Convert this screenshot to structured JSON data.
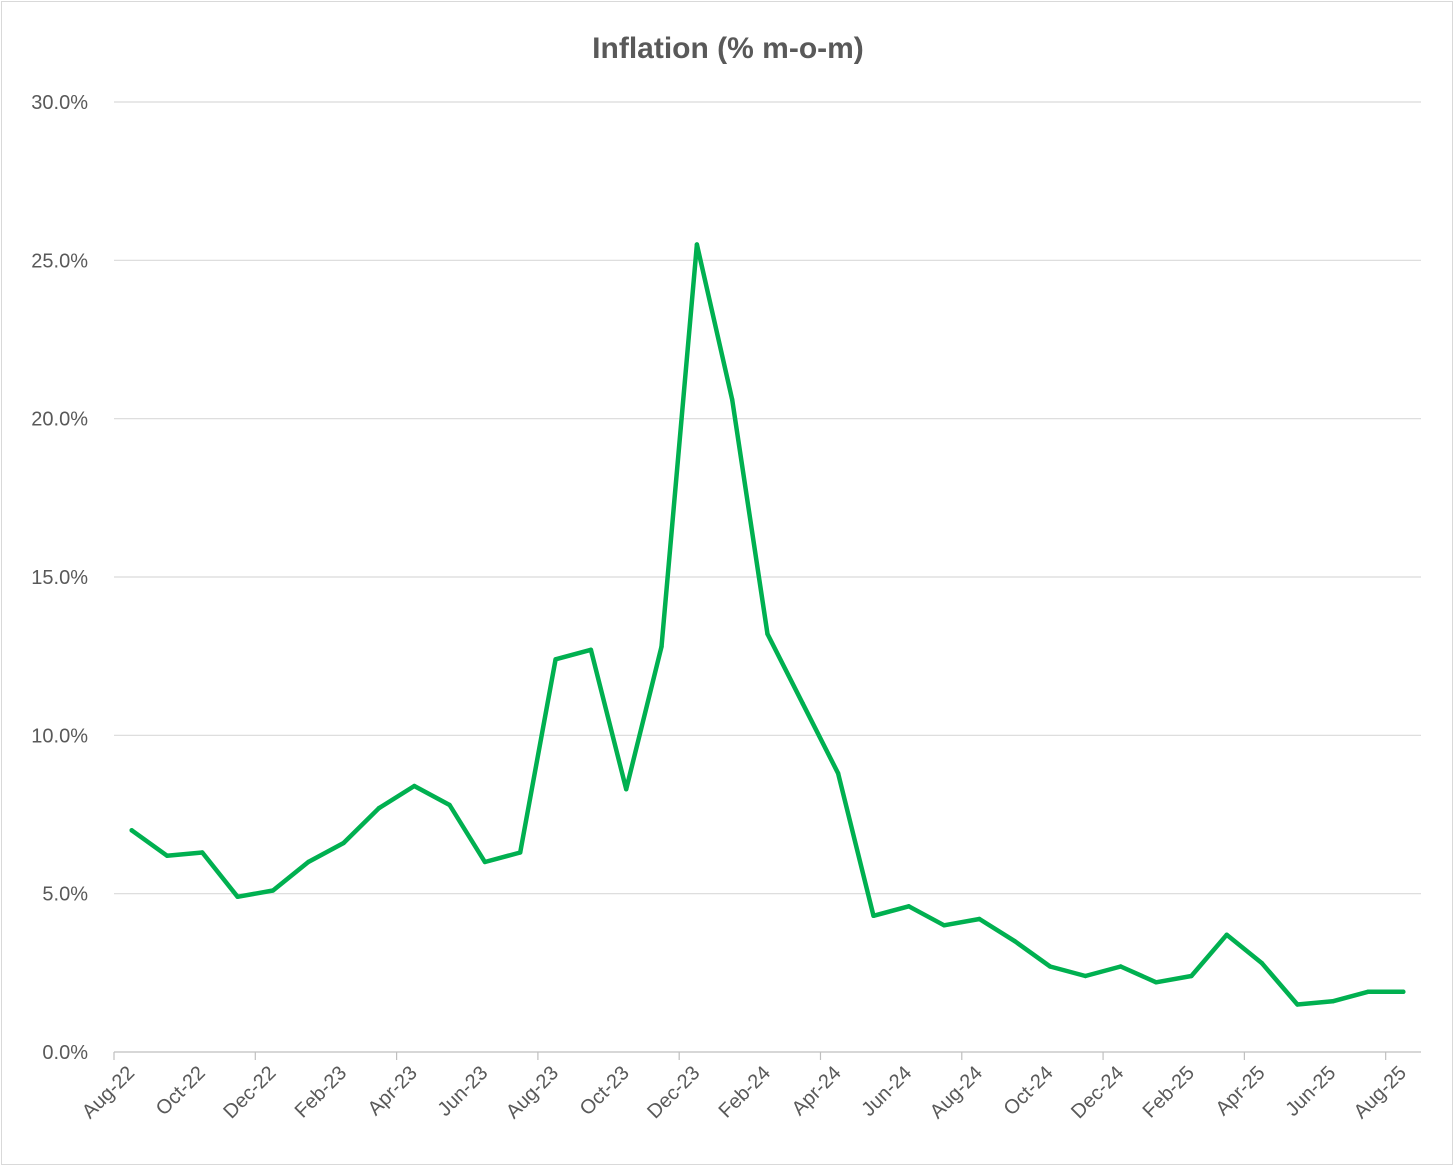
{
  "chart_data": {
    "type": "line",
    "title": "Inflation (% m-o-m)",
    "xlabel": "",
    "ylabel": "",
    "ylim": [
      0,
      30
    ],
    "y_ticks": [
      "0.0%",
      "5.0%",
      "10.0%",
      "15.0%",
      "20.0%",
      "25.0%",
      "30.0%"
    ],
    "y_tick_values": [
      0,
      5,
      10,
      15,
      20,
      25,
      30
    ],
    "x_tick_labels": [
      "Aug-22",
      "Oct-22",
      "Dec-22",
      "Feb-23",
      "Apr-23",
      "Jun-23",
      "Aug-23",
      "Oct-23",
      "Dec-23",
      "Feb-24",
      "Apr-24",
      "Jun-24",
      "Aug-24",
      "Oct-24",
      "Dec-24",
      "Feb-25",
      "Apr-25",
      "Jun-25",
      "Aug-25"
    ],
    "grid": true,
    "legend": "none",
    "line_color": "#00b050",
    "categories": [
      "Aug-22",
      "Sep-22",
      "Oct-22",
      "Nov-22",
      "Dec-22",
      "Jan-23",
      "Feb-23",
      "Mar-23",
      "Apr-23",
      "May-23",
      "Jun-23",
      "Jul-23",
      "Aug-23",
      "Sep-23",
      "Oct-23",
      "Nov-23",
      "Dec-23",
      "Jan-24",
      "Feb-24",
      "Mar-24",
      "Apr-24",
      "May-24",
      "Jun-24",
      "Jul-24",
      "Aug-24",
      "Sep-24",
      "Oct-24",
      "Nov-24",
      "Dec-24",
      "Jan-25",
      "Feb-25",
      "Mar-25",
      "Apr-25",
      "May-25",
      "Jun-25",
      "Jul-25",
      "Aug-25"
    ],
    "series": [
      {
        "values": [
          7.0,
          6.2,
          6.3,
          4.9,
          5.1,
          6.0,
          6.6,
          7.7,
          8.4,
          7.8,
          6.0,
          6.3,
          12.4,
          12.7,
          8.3,
          12.8,
          25.5,
          20.6,
          13.2,
          11.0,
          8.8,
          4.3,
          4.6,
          4.0,
          4.2,
          3.5,
          2.7,
          2.4,
          2.7,
          2.2,
          2.4,
          3.7,
          2.8,
          1.5,
          1.6,
          1.9,
          1.9
        ]
      }
    ]
  }
}
